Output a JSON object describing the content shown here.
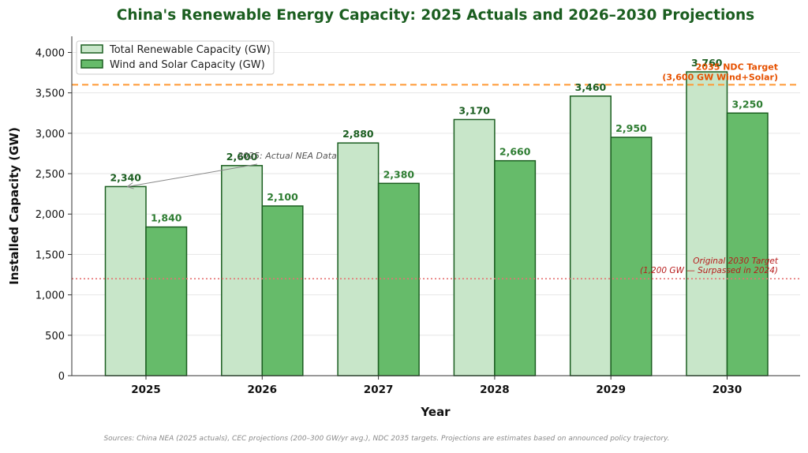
{
  "chart_data": {
    "type": "bar",
    "title": "China's Renewable Energy Capacity: 2025 Actuals and 2026–2030 Projections",
    "xlabel": "Year",
    "ylabel": "Installed Capacity (GW)",
    "categories": [
      "2025",
      "2026",
      "2027",
      "2028",
      "2029",
      "2030"
    ],
    "ylim": [
      0,
      4200
    ],
    "yticks": [
      0,
      500,
      1000,
      1500,
      2000,
      2500,
      3000,
      3500,
      4000
    ],
    "ytick_labels": [
      "0",
      "500",
      "1,000",
      "1,500",
      "2,000",
      "2,500",
      "3,000",
      "3,500",
      "4,000"
    ],
    "grid": true,
    "legend_position": "top-left",
    "series": [
      {
        "name": "Total Renewable Capacity (GW)",
        "values": [
          2340,
          2600,
          2880,
          3170,
          3460,
          3760
        ],
        "labels": [
          "2,340",
          "2,600",
          "2,880",
          "3,170",
          "3,460",
          "3,760"
        ],
        "fill": "#c8e6c9",
        "stroke": "#1b5e20",
        "label_color": "#1b5e20"
      },
      {
        "name": "Wind and Solar Capacity (GW)",
        "values": [
          1840,
          2100,
          2380,
          2660,
          2950,
          3250
        ],
        "labels": [
          "1,840",
          "2,100",
          "2,380",
          "2,660",
          "2,950",
          "3,250"
        ],
        "fill": "#66bb6a",
        "stroke": "#1b5e20",
        "label_color": "#2e7d32"
      }
    ],
    "reference_lines": [
      {
        "value": 3600,
        "style": "dashed",
        "color": "#ff9933",
        "label_lines": [
          "2035 NDC Target",
          "(3,600 GW Wind+Solar)"
        ],
        "label_color": "#e65100"
      },
      {
        "value": 1200,
        "style": "dotted",
        "color": "#e57373",
        "label_lines": [
          "Original 2030 Target",
          "(1,200 GW — Surpassed in 2024)"
        ],
        "label_color": "#b71c1c"
      }
    ],
    "annotations": [
      {
        "text": "2025: Actual NEA Data",
        "points_to": {
          "category": "2025",
          "value": 2340
        }
      }
    ],
    "source_note": "Sources: China NEA (2025 actuals), CEC projections (200–300 GW/yr avg.), NDC 2035 targets. Projections are estimates based on announced policy trajectory."
  }
}
